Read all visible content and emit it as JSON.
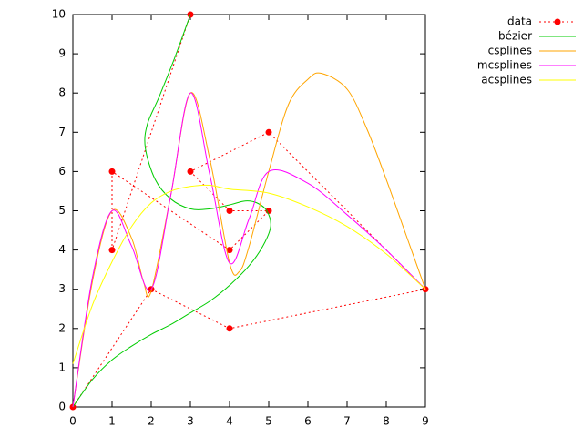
{
  "chart_data": {
    "type": "line",
    "xlim": [
      0,
      9
    ],
    "ylim": [
      0,
      10
    ],
    "xticks": [
      0,
      1,
      2,
      3,
      4,
      5,
      6,
      7,
      8,
      9
    ],
    "yticks": [
      0,
      1,
      2,
      3,
      4,
      5,
      6,
      7,
      8,
      9,
      10
    ],
    "legend": "top-right",
    "series": [
      {
        "name": "data",
        "color": "#ff0000",
        "style": "dotted-points",
        "x": [
          0,
          2,
          4,
          9,
          5,
          3,
          4,
          5,
          4,
          1,
          1,
          3
        ],
        "values": [
          0,
          3,
          2,
          3,
          7,
          6,
          5,
          5,
          4,
          6,
          4,
          10
        ]
      },
      {
        "name": "bézier",
        "color": "#00cc00",
        "style": "line",
        "x": [
          0,
          0.5,
          1,
          1.5,
          2,
          2.5,
          3,
          3.5,
          4,
          4.5,
          4.85,
          5.05,
          4.95,
          4.7,
          4.4,
          4,
          3.5,
          3,
          2.5,
          2.1,
          1.85,
          1.9,
          2.2,
          2.6,
          3
        ],
        "values": [
          0,
          0.7,
          1.2,
          1.55,
          1.85,
          2.1,
          2.4,
          2.7,
          3.1,
          3.6,
          4.1,
          4.6,
          5.0,
          5.2,
          5.25,
          5.15,
          5.05,
          5.05,
          5.3,
          5.8,
          6.6,
          7.2,
          7.9,
          8.9,
          10
        ]
      },
      {
        "name": "csplines",
        "color": "#ffa500",
        "style": "line",
        "x": [
          0,
          0.5,
          1,
          1.5,
          1.8,
          2,
          2.5,
          3,
          3.5,
          4,
          4.25,
          4.5,
          5,
          5.5,
          6,
          6.35,
          7,
          7.5,
          8,
          8.5,
          9
        ],
        "values": [
          0,
          3.2,
          5,
          4.3,
          3.2,
          2.95,
          5.4,
          8,
          6.3,
          3.67,
          3.45,
          4.1,
          6,
          7.7,
          8.35,
          8.5,
          8.1,
          7.1,
          5.8,
          4.4,
          3
        ]
      },
      {
        "name": "mcsplines",
        "color": "#ff00ff",
        "style": "line",
        "x": [
          0,
          0.5,
          1,
          1.5,
          2,
          2.5,
          3,
          3.5,
          4,
          4.5,
          5,
          6,
          7,
          8,
          9
        ],
        "values": [
          0,
          3.3,
          5,
          4.1,
          3,
          5.4,
          8,
          5.9,
          3.67,
          4.8,
          6,
          5.7,
          4.9,
          4.0,
          3
        ]
      },
      {
        "name": "acsplines",
        "color": "#ffff00",
        "style": "line",
        "x": [
          0,
          0.5,
          1,
          1.5,
          2,
          2.5,
          3,
          3.5,
          4,
          5,
          6,
          7,
          8,
          9
        ],
        "values": [
          1.1,
          2.6,
          3.7,
          4.6,
          5.2,
          5.5,
          5.62,
          5.65,
          5.55,
          5.45,
          5.1,
          4.6,
          3.9,
          3
        ]
      }
    ]
  }
}
